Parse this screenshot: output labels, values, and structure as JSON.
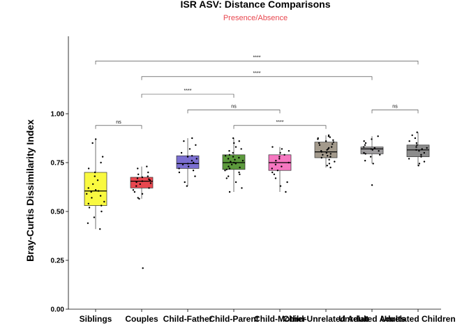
{
  "chart_data": {
    "type": "boxplot",
    "title": "ISR ASV: Distance Comparisons",
    "subtitle": "Presence/Absence",
    "subtitle_color": "#e8474f",
    "xlabel": "",
    "ylabel": "Bray-Curtis Dissimilarity Index",
    "ylim": [
      0,
      1.5
    ],
    "yticks": [
      0.0,
      0.25,
      0.5,
      0.75,
      1.0
    ],
    "ytick_labels": [
      "0.00",
      "0.25",
      "0.50",
      "0.75",
      "1.00"
    ],
    "grid": false,
    "categories": [
      "Siblings",
      "Couples",
      "Child-Father",
      "Child-Parent",
      "Child-Mother",
      "Child-Unrelated Adult",
      "Unrelated Adults",
      "Unrelated Children"
    ],
    "boxes": [
      {
        "category": "Siblings",
        "color": "#f9f940",
        "min": 0.41,
        "q1": 0.53,
        "median": 0.605,
        "q3": 0.7,
        "max": 0.87,
        "points": [
          0.41,
          0.44,
          0.47,
          0.5,
          0.52,
          0.53,
          0.54,
          0.55,
          0.57,
          0.58,
          0.59,
          0.6,
          0.605,
          0.61,
          0.62,
          0.64,
          0.66,
          0.68,
          0.7,
          0.72,
          0.75,
          0.78,
          0.85,
          0.87
        ]
      },
      {
        "category": "Couples",
        "color": "#e8474f",
        "min": 0.565,
        "q1": 0.62,
        "median": 0.655,
        "q3": 0.675,
        "max": 0.73,
        "points": [
          0.21,
          0.565,
          0.57,
          0.59,
          0.6,
          0.61,
          0.62,
          0.63,
          0.64,
          0.645,
          0.65,
          0.655,
          0.66,
          0.665,
          0.67,
          0.675,
          0.68,
          0.69,
          0.7,
          0.72,
          0.73
        ]
      },
      {
        "category": "Child-Father",
        "color": "#7b6fd1",
        "min": 0.63,
        "q1": 0.72,
        "median": 0.745,
        "q3": 0.785,
        "max": 0.875,
        "points": [
          0.63,
          0.65,
          0.68,
          0.7,
          0.71,
          0.72,
          0.73,
          0.74,
          0.745,
          0.75,
          0.76,
          0.77,
          0.78,
          0.785,
          0.8,
          0.82,
          0.84,
          0.86,
          0.875
        ]
      },
      {
        "category": "Child-Parent",
        "color": "#5c9a3c",
        "min": 0.6,
        "q1": 0.715,
        "median": 0.75,
        "q3": 0.79,
        "max": 0.875,
        "points": [
          0.6,
          0.62,
          0.65,
          0.67,
          0.68,
          0.69,
          0.7,
          0.71,
          0.715,
          0.72,
          0.725,
          0.73,
          0.74,
          0.745,
          0.75,
          0.755,
          0.76,
          0.765,
          0.77,
          0.775,
          0.78,
          0.785,
          0.79,
          0.8,
          0.81,
          0.82,
          0.83,
          0.85,
          0.86,
          0.875
        ]
      },
      {
        "category": "Child-Mother",
        "color": "#f577c0",
        "min": 0.6,
        "q1": 0.71,
        "median": 0.75,
        "q3": 0.79,
        "max": 0.83,
        "points": [
          0.6,
          0.63,
          0.65,
          0.67,
          0.69,
          0.7,
          0.71,
          0.72,
          0.73,
          0.74,
          0.75,
          0.76,
          0.77,
          0.78,
          0.79,
          0.8,
          0.81,
          0.82,
          0.83
        ]
      },
      {
        "category": "Child-Unrelated Adult",
        "color": "#a39a8c",
        "min": 0.725,
        "q1": 0.775,
        "median": 0.805,
        "q3": 0.855,
        "max": 0.89,
        "points": [
          0.725,
          0.735,
          0.745,
          0.755,
          0.765,
          0.775,
          0.78,
          0.785,
          0.79,
          0.795,
          0.8,
          0.805,
          0.81,
          0.815,
          0.82,
          0.825,
          0.83,
          0.84,
          0.845,
          0.85,
          0.855,
          0.86,
          0.865,
          0.87,
          0.875,
          0.88,
          0.885,
          0.89
        ]
      },
      {
        "category": "Unrelated Adults",
        "color": "#9c9a9c",
        "min": 0.745,
        "q1": 0.795,
        "median": 0.82,
        "q3": 0.83,
        "max": 0.885,
        "points": [
          0.635,
          0.745,
          0.76,
          0.78,
          0.79,
          0.795,
          0.8,
          0.81,
          0.815,
          0.82,
          0.825,
          0.83,
          0.84,
          0.85,
          0.86,
          0.87,
          0.885
        ]
      },
      {
        "category": "Unrelated Children",
        "color": "#8c8c8c",
        "min": 0.735,
        "q1": 0.78,
        "median": 0.815,
        "q3": 0.84,
        "max": 0.905,
        "points": [
          0.735,
          0.745,
          0.755,
          0.77,
          0.78,
          0.79,
          0.8,
          0.81,
          0.815,
          0.82,
          0.825,
          0.83,
          0.84,
          0.85,
          0.86,
          0.875,
          0.89,
          0.905
        ]
      }
    ],
    "comparisons": [
      {
        "from": "Siblings",
        "to": "Couples",
        "label": "ns",
        "y": 0.94
      },
      {
        "from": "Child-Parent",
        "to": "Child-Unrelated Adult",
        "label": "****",
        "y": 0.94
      },
      {
        "from": "Child-Father",
        "to": "Child-Mother",
        "label": "ns",
        "y": 1.02
      },
      {
        "from": "Unrelated Adults",
        "to": "Unrelated Children",
        "label": "ns",
        "y": 1.02
      },
      {
        "from": "Couples",
        "to": "Child-Parent",
        "label": "****",
        "y": 1.1
      },
      {
        "from": "Couples",
        "to": "Unrelated Adults",
        "label": "****",
        "y": 1.19
      },
      {
        "from": "Siblings",
        "to": "Unrelated Children",
        "label": "****",
        "y": 1.27
      }
    ]
  }
}
